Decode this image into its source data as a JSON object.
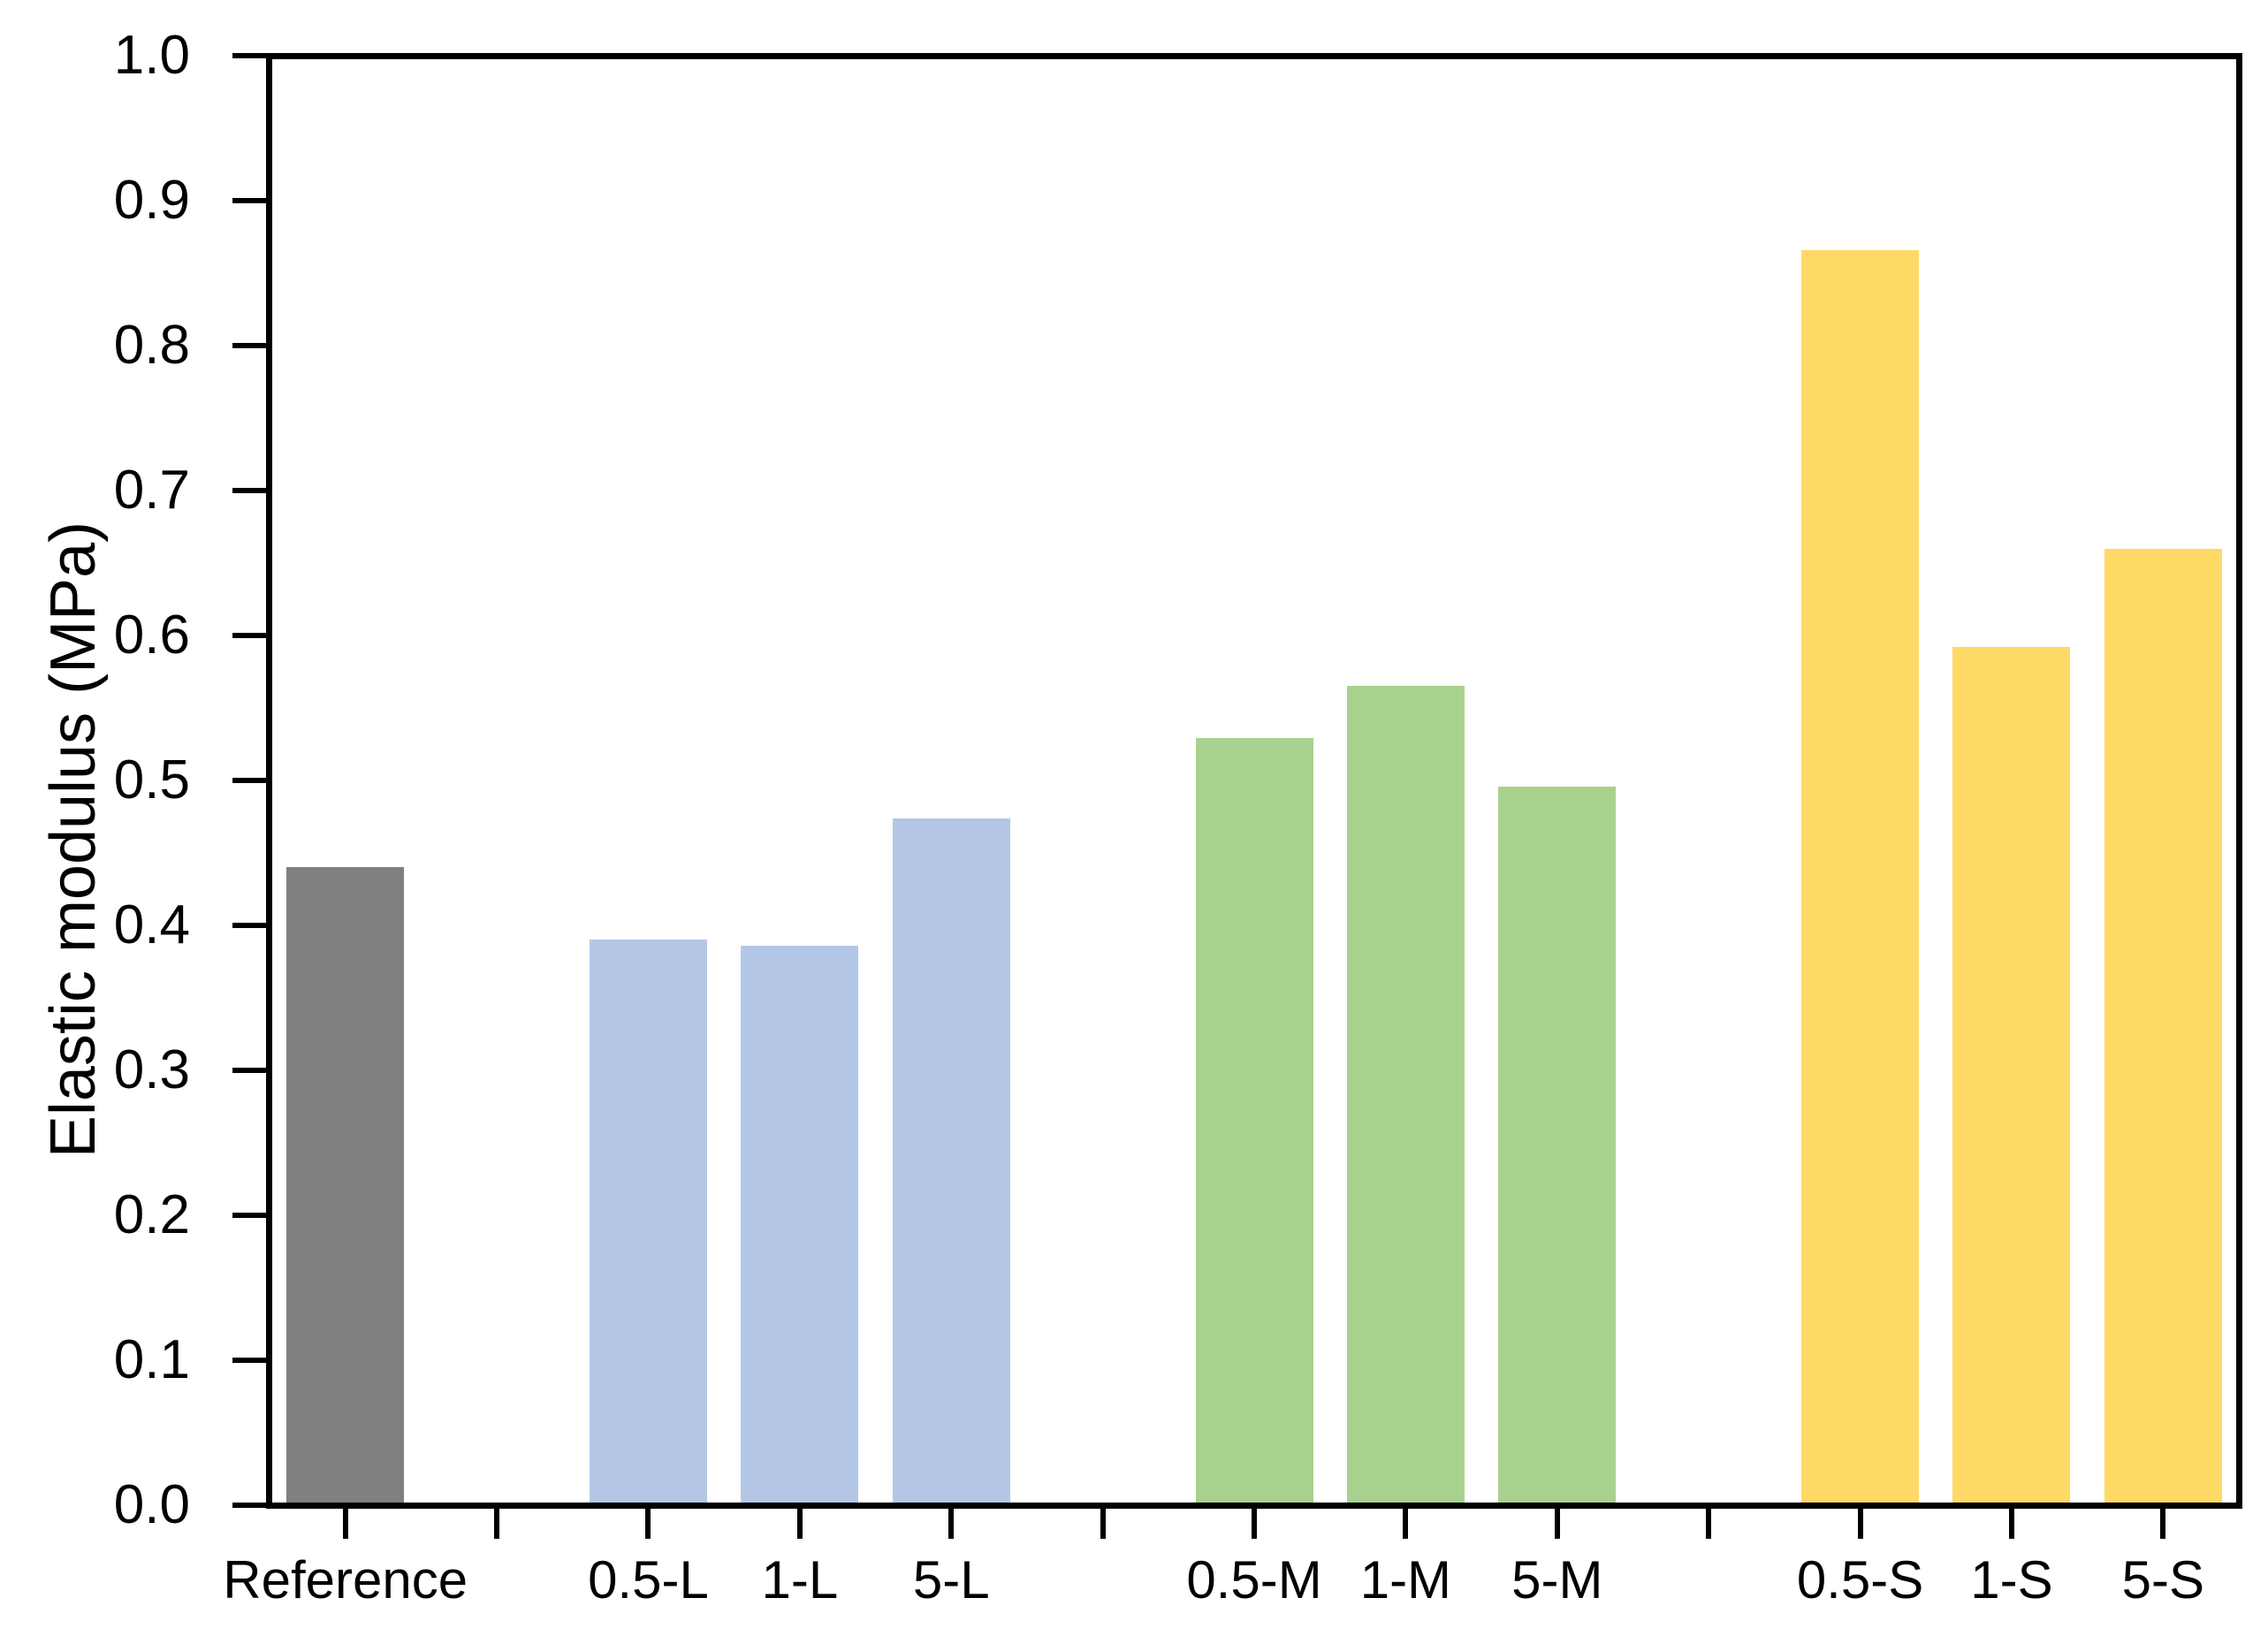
{
  "chart_data": {
    "type": "bar",
    "title": "",
    "xlabel": "",
    "ylabel": "Elastic modulus (MPa)",
    "ylim": [
      0.0,
      1.0
    ],
    "ytick_step": 0.1,
    "ytick_labels": [
      "0.0",
      "0.1",
      "0.2",
      "0.3",
      "0.4",
      "0.5",
      "0.6",
      "0.7",
      "0.8",
      "0.9",
      "1.0"
    ],
    "grid": false,
    "legend": "none",
    "total_slots": 13,
    "categories": [
      "Reference",
      "0.5-L",
      "1-L",
      "5-L",
      "0.5-M",
      "1-M",
      "5-M",
      "0.5-S",
      "1-S",
      "5-S"
    ],
    "values": [
      0.44,
      0.39,
      0.386,
      0.474,
      0.529,
      0.565,
      0.496,
      0.866,
      0.592,
      0.66
    ],
    "slots": [
      0,
      2,
      3,
      4,
      6,
      7,
      8,
      10,
      11,
      12
    ],
    "groups": [
      "reference",
      "L",
      "L",
      "L",
      "M",
      "M",
      "M",
      "S",
      "S",
      "S"
    ],
    "bar_colors": [
      "#808080",
      "#B4C7E7",
      "#B4C7E7",
      "#B4C7E7",
      "#A9D18E",
      "#A9D18E",
      "#A9D18E",
      "#FFD966",
      "#FFD966",
      "#FFD966"
    ],
    "group_colors": {
      "reference": "#808080",
      "L": "#B4C7E7",
      "M": "#A9D18E",
      "S": "#FFD966"
    },
    "axis_color": "#000000",
    "background_color": "#FFFFFF"
  }
}
